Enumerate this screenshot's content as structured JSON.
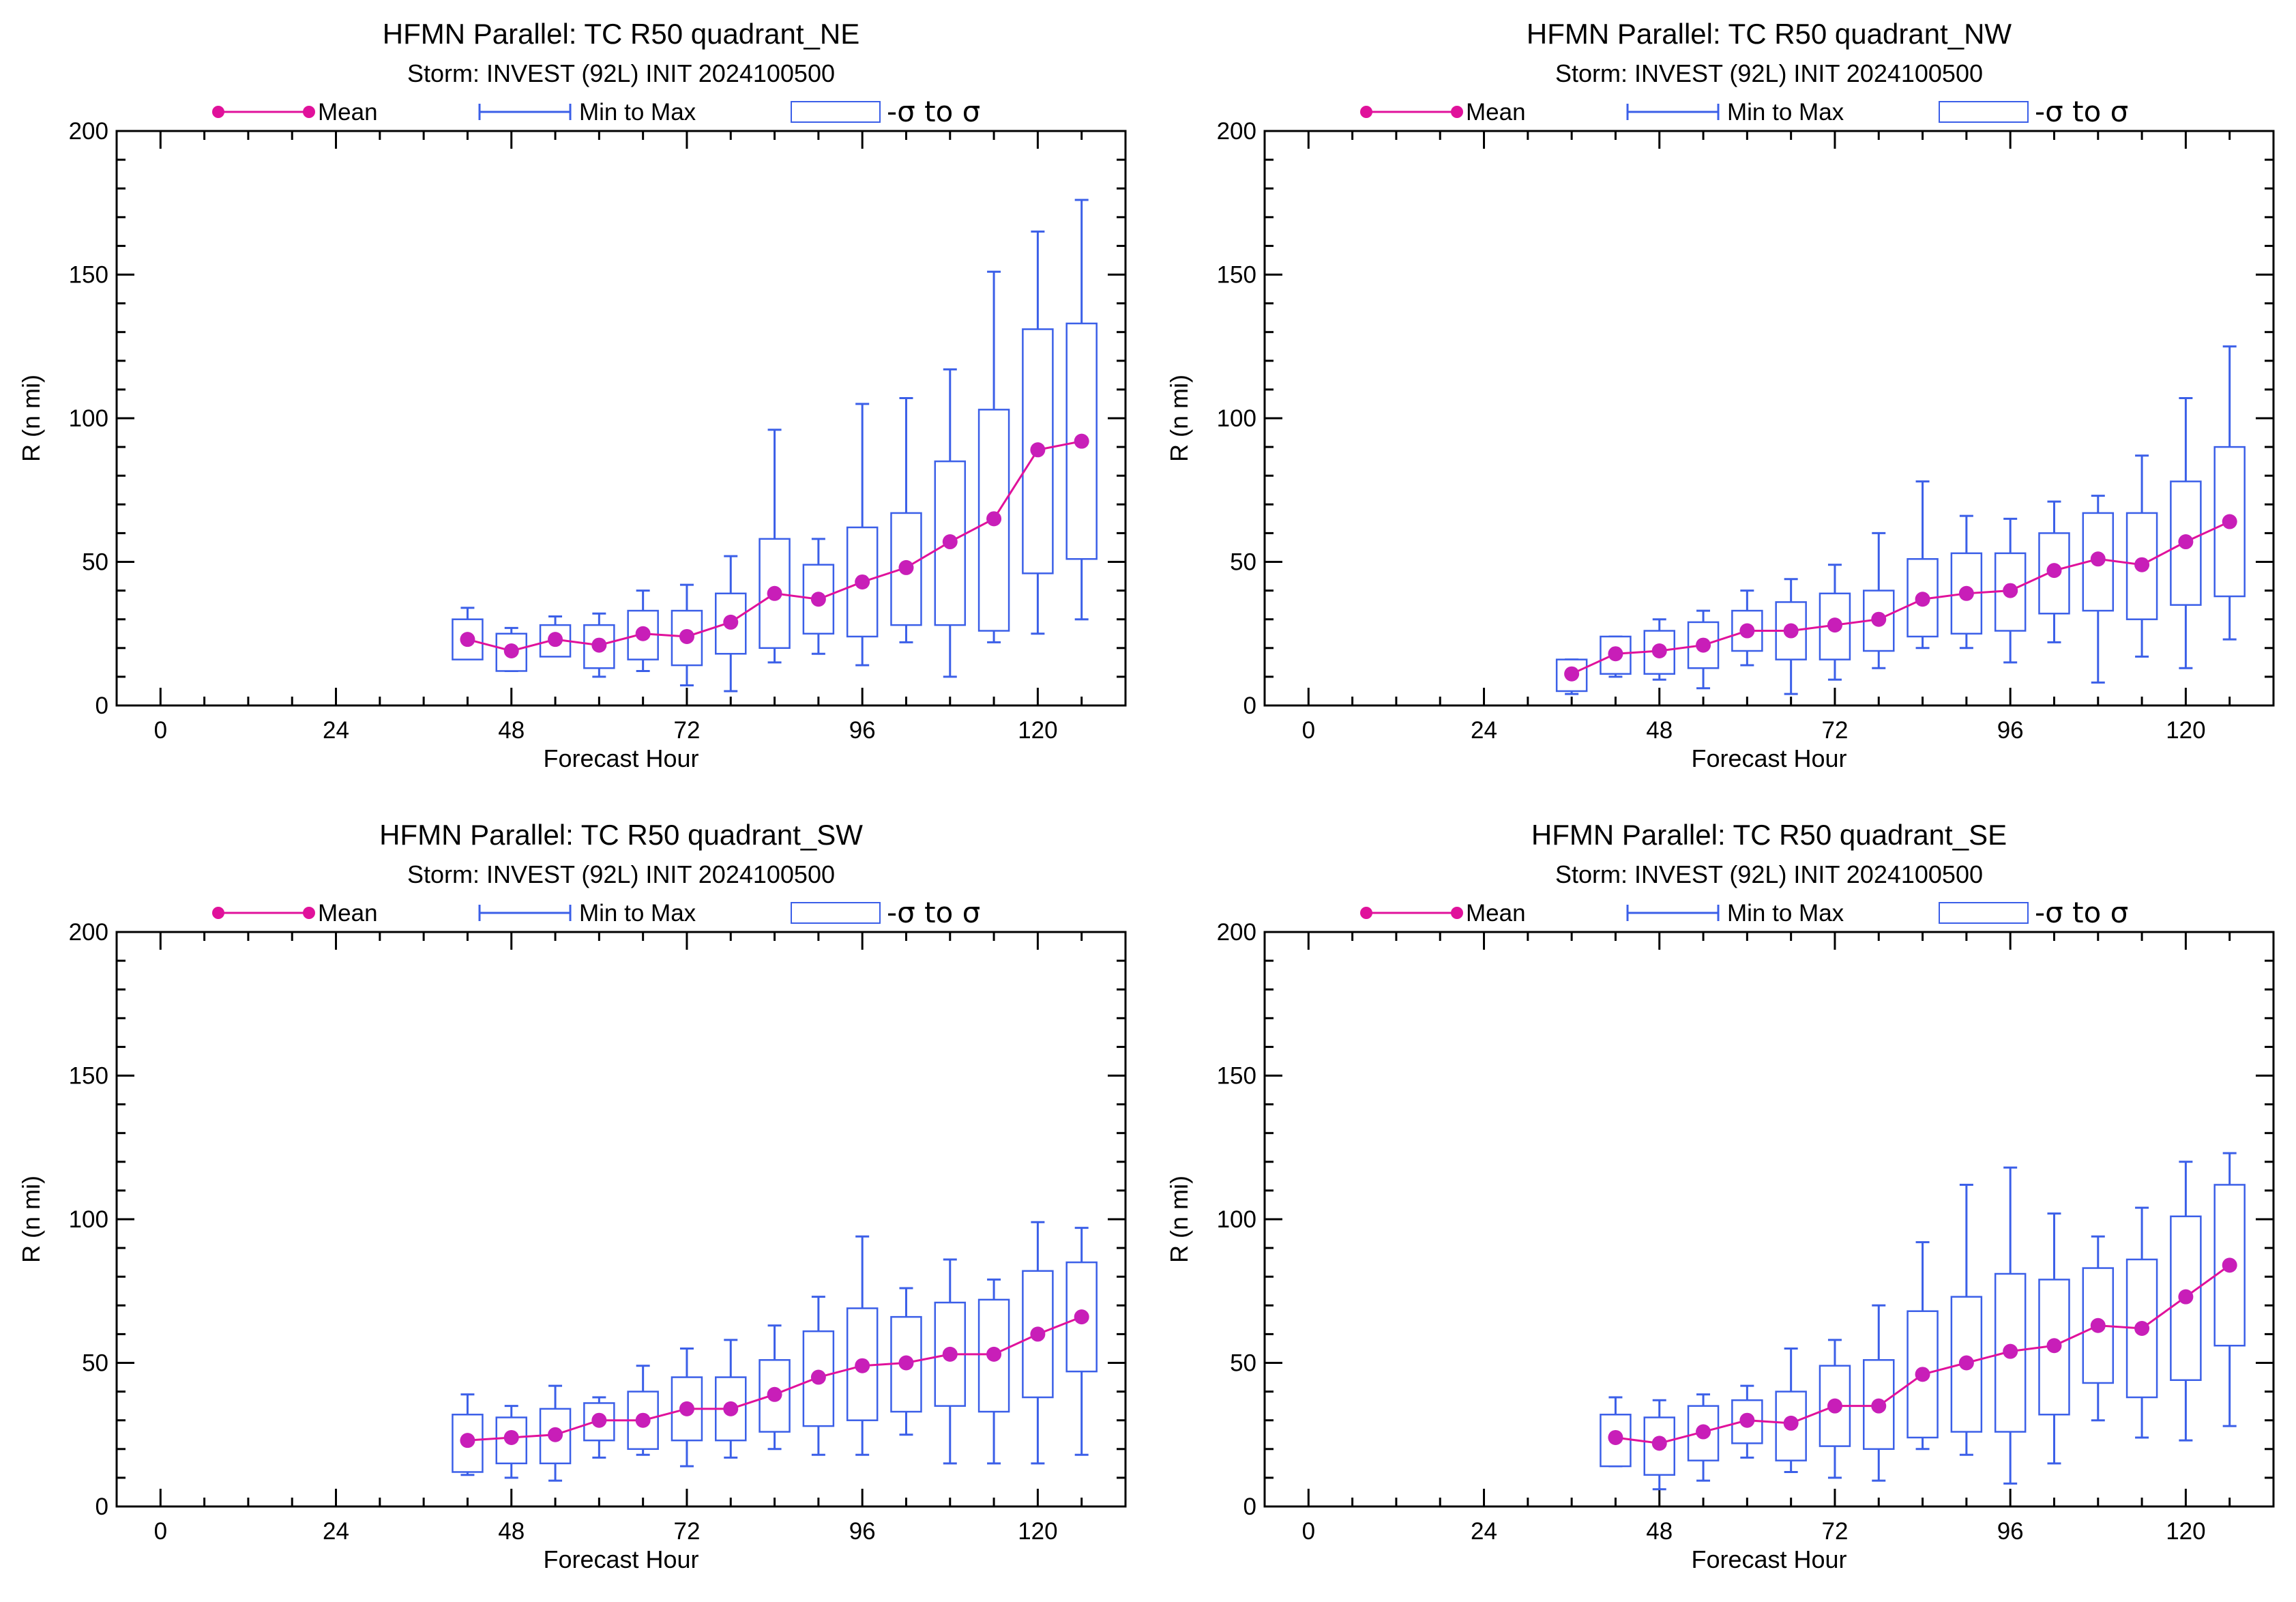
{
  "colors": {
    "mean": "#e0119b",
    "mean_marker": "#c81eb8",
    "range": "#3b5fe8",
    "frame": "#000000"
  },
  "legend": {
    "mean": "Mean",
    "minmax": "Min to Max",
    "sigma": "-σ to σ"
  },
  "chart_data": [
    {
      "type": "box",
      "title": "HFMN Parallel: TC  R50 quadrant_NE",
      "subtitle": "Storm: INVEST (92L) INIT 2024100500",
      "xlabel": "Forecast Hour",
      "ylabel": "R (n mi)",
      "xlim": [
        -6,
        132
      ],
      "ylim": [
        0,
        200
      ],
      "xticks": [
        0,
        24,
        48,
        72,
        96,
        120
      ],
      "yticks": [
        0,
        50,
        100,
        150,
        200
      ],
      "x": [
        42,
        48,
        54,
        60,
        66,
        72,
        78,
        84,
        90,
        96,
        102,
        108,
        114,
        120,
        126
      ],
      "mean": [
        23,
        19,
        23,
        21,
        25,
        24,
        29,
        39,
        37,
        43,
        48,
        57,
        65,
        89,
        92
      ],
      "min": [
        17,
        12,
        18,
        10,
        12,
        7,
        5,
        15,
        18,
        14,
        22,
        10,
        22,
        25,
        30
      ],
      "max": [
        34,
        27,
        31,
        32,
        40,
        42,
        52,
        96,
        58,
        105,
        107,
        117,
        151,
        165,
        176
      ],
      "sigma_low": [
        16,
        12,
        17,
        13,
        16,
        14,
        18,
        20,
        25,
        24,
        28,
        28,
        26,
        46,
        51
      ],
      "sigma_high": [
        30,
        25,
        28,
        28,
        33,
        33,
        39,
        58,
        49,
        62,
        67,
        85,
        103,
        131,
        133
      ]
    },
    {
      "type": "box",
      "title": "HFMN Parallel: TC  R50 quadrant_NW",
      "subtitle": "Storm: INVEST (92L) INIT 2024100500",
      "xlabel": "Forecast Hour",
      "ylabel": "R (n mi)",
      "xlim": [
        -6,
        132
      ],
      "ylim": [
        0,
        200
      ],
      "xticks": [
        0,
        24,
        48,
        72,
        96,
        120
      ],
      "yticks": [
        0,
        50,
        100,
        150,
        200
      ],
      "x": [
        36,
        42,
        48,
        54,
        60,
        66,
        72,
        78,
        84,
        90,
        96,
        102,
        108,
        114,
        120,
        126
      ],
      "mean": [
        11,
        18,
        19,
        21,
        26,
        26,
        28,
        30,
        37,
        39,
        40,
        47,
        51,
        49,
        57,
        64
      ],
      "min": [
        4,
        10,
        9,
        6,
        14,
        4,
        9,
        13,
        20,
        20,
        15,
        22,
        8,
        17,
        13,
        23
      ],
      "max": [
        16,
        24,
        30,
        33,
        40,
        44,
        49,
        60,
        78,
        66,
        65,
        71,
        73,
        87,
        107,
        125
      ],
      "sigma_low": [
        5,
        11,
        11,
        13,
        19,
        16,
        16,
        19,
        24,
        25,
        26,
        32,
        33,
        30,
        35,
        38
      ],
      "sigma_high": [
        16,
        24,
        26,
        29,
        33,
        36,
        39,
        40,
        51,
        53,
        53,
        60,
        67,
        67,
        78,
        90
      ]
    },
    {
      "type": "box",
      "title": "HFMN Parallel: TC  R50 quadrant_SW",
      "subtitle": "Storm: INVEST (92L) INIT 2024100500",
      "xlabel": "Forecast Hour",
      "ylabel": "R (n mi)",
      "xlim": [
        -6,
        132
      ],
      "ylim": [
        0,
        200
      ],
      "xticks": [
        0,
        24,
        48,
        72,
        96,
        120
      ],
      "yticks": [
        0,
        50,
        100,
        150,
        200
      ],
      "x": [
        42,
        48,
        54,
        60,
        66,
        72,
        78,
        84,
        90,
        96,
        102,
        108,
        114,
        120,
        126
      ],
      "mean": [
        23,
        24,
        25,
        30,
        30,
        34,
        34,
        39,
        45,
        49,
        50,
        53,
        53,
        60,
        66
      ],
      "min": [
        11,
        10,
        9,
        17,
        18,
        14,
        17,
        20,
        18,
        18,
        25,
        15,
        15,
        15,
        18
      ],
      "max": [
        39,
        35,
        42,
        38,
        49,
        55,
        58,
        63,
        73,
        94,
        76,
        86,
        79,
        99,
        97
      ],
      "sigma_low": [
        12,
        15,
        15,
        23,
        20,
        23,
        23,
        26,
        28,
        30,
        33,
        35,
        33,
        38,
        47
      ],
      "sigma_high": [
        32,
        31,
        34,
        36,
        40,
        45,
        45,
        51,
        61,
        69,
        66,
        71,
        72,
        82,
        85
      ]
    },
    {
      "type": "box",
      "title": "HFMN Parallel: TC  R50 quadrant_SE",
      "subtitle": "Storm: INVEST (92L) INIT 2024100500",
      "xlabel": "Forecast Hour",
      "ylabel": "R (n mi)",
      "xlim": [
        -6,
        132
      ],
      "ylim": [
        0,
        200
      ],
      "xticks": [
        0,
        24,
        48,
        72,
        96,
        120
      ],
      "yticks": [
        0,
        50,
        100,
        150,
        200
      ],
      "x": [
        42,
        48,
        54,
        60,
        66,
        72,
        78,
        84,
        90,
        96,
        102,
        108,
        114,
        120,
        126
      ],
      "mean": [
        24,
        22,
        26,
        30,
        29,
        35,
        35,
        46,
        50,
        54,
        56,
        63,
        62,
        73,
        84
      ],
      "min": [
        14,
        6,
        9,
        17,
        12,
        10,
        9,
        20,
        18,
        8,
        15,
        30,
        24,
        23,
        28
      ],
      "max": [
        38,
        37,
        39,
        42,
        55,
        58,
        70,
        92,
        112,
        118,
        102,
        94,
        104,
        120,
        123
      ],
      "sigma_low": [
        14,
        11,
        16,
        22,
        16,
        21,
        20,
        24,
        26,
        26,
        32,
        43,
        38,
        44,
        56
      ],
      "sigma_high": [
        32,
        31,
        35,
        37,
        40,
        49,
        51,
        68,
        73,
        81,
        79,
        83,
        86,
        101,
        112
      ]
    }
  ]
}
